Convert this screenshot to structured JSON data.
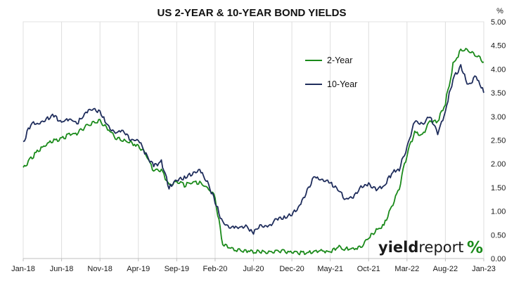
{
  "chart_data": {
    "type": "line",
    "title": "US 2-YEAR & 10-YEAR BOND YIELDS",
    "ylabel": "%",
    "ylim": [
      0,
      5
    ],
    "y_ticks": [
      "0.00",
      "0.50",
      "1.00",
      "1.50",
      "2.00",
      "2.50",
      "3.00",
      "3.50",
      "4.00",
      "4.50",
      "5.00"
    ],
    "y_axis_position": "right",
    "x_ticks": [
      "Jan-18",
      "Jun-18",
      "Nov-18",
      "Apr-19",
      "Sep-19",
      "Feb-20",
      "Jul-20",
      "Dec-20",
      "May-21",
      "Oct-21",
      "Mar-22",
      "Aug-22",
      "Jan-23"
    ],
    "grid": "vertical",
    "legend_position": "upper-right",
    "x": [
      "2018-01",
      "2018-02",
      "2018-03",
      "2018-04",
      "2018-05",
      "2018-06",
      "2018-07",
      "2018-08",
      "2018-09",
      "2018-10",
      "2018-11",
      "2018-12",
      "2019-01",
      "2019-02",
      "2019-03",
      "2019-04",
      "2019-05",
      "2019-06",
      "2019-07",
      "2019-08",
      "2019-09",
      "2019-10",
      "2019-11",
      "2019-12",
      "2020-01",
      "2020-02",
      "2020-03",
      "2020-04",
      "2020-05",
      "2020-06",
      "2020-07",
      "2020-08",
      "2020-09",
      "2020-10",
      "2020-11",
      "2020-12",
      "2021-01",
      "2021-02",
      "2021-03",
      "2021-04",
      "2021-05",
      "2021-06",
      "2021-07",
      "2021-08",
      "2021-09",
      "2021-10",
      "2021-11",
      "2021-12",
      "2022-01",
      "2022-02",
      "2022-03",
      "2022-04",
      "2022-05",
      "2022-06",
      "2022-07",
      "2022-08",
      "2022-09",
      "2022-10",
      "2022-11",
      "2022-12",
      "2023-01"
    ],
    "series": [
      {
        "name": "2-Year",
        "color": "#1a8a1a",
        "values": [
          1.9,
          2.12,
          2.27,
          2.42,
          2.5,
          2.52,
          2.62,
          2.64,
          2.77,
          2.87,
          2.9,
          2.75,
          2.55,
          2.5,
          2.45,
          2.38,
          2.2,
          1.85,
          1.85,
          1.55,
          1.62,
          1.55,
          1.6,
          1.6,
          1.5,
          1.3,
          0.3,
          0.22,
          0.17,
          0.17,
          0.15,
          0.14,
          0.13,
          0.14,
          0.16,
          0.12,
          0.12,
          0.12,
          0.15,
          0.16,
          0.15,
          0.25,
          0.2,
          0.22,
          0.25,
          0.45,
          0.6,
          0.7,
          1.1,
          1.5,
          2.2,
          2.65,
          2.6,
          2.9,
          2.9,
          3.3,
          4.1,
          4.4,
          4.4,
          4.3,
          4.15
        ]
      },
      {
        "name": "10-Year",
        "color": "#1f2d5c",
        "values": [
          2.45,
          2.85,
          2.85,
          2.95,
          3.02,
          2.88,
          2.96,
          2.85,
          3.05,
          3.15,
          3.1,
          2.8,
          2.65,
          2.7,
          2.5,
          2.5,
          2.2,
          1.95,
          2.05,
          1.5,
          1.65,
          1.7,
          1.8,
          1.85,
          1.62,
          1.2,
          0.75,
          0.65,
          0.66,
          0.67,
          0.55,
          0.7,
          0.68,
          0.85,
          0.86,
          0.93,
          1.1,
          1.45,
          1.73,
          1.65,
          1.6,
          1.45,
          1.25,
          1.3,
          1.5,
          1.58,
          1.45,
          1.52,
          1.8,
          1.9,
          2.35,
          2.9,
          2.85,
          3.0,
          2.65,
          3.1,
          3.8,
          4.05,
          3.65,
          3.85,
          3.5
        ]
      }
    ]
  },
  "watermark": {
    "part1": "yield",
    "part2": "report",
    "percent": "%",
    "colors": [
      "#1a8a1a",
      "#c0282d"
    ]
  }
}
